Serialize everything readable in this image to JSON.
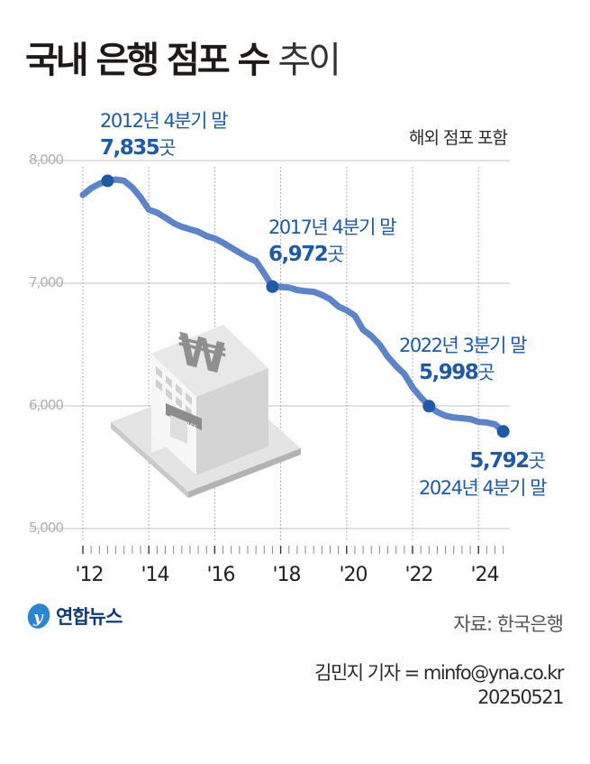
{
  "header": {
    "title_bold": "국내 은행 점포 수",
    "title_light": "추이",
    "note": "해외 점포 포함"
  },
  "colors": {
    "line": "#5b85c8",
    "marker": "#1e5aa8",
    "annotation": "#1e5aa8",
    "grid": "#cfcfcf",
    "axis_label": "#b0b0b0"
  },
  "annotations": [
    {
      "period": "2012년 4분기 말",
      "value": "7,835",
      "unit": "곳"
    },
    {
      "period": "2017년 4분기 말",
      "value": "6,972",
      "unit": "곳"
    },
    {
      "period": "2022년 3분기 말",
      "value": "5,998",
      "unit": "곳"
    },
    {
      "period": "2024년 4분기 말",
      "value": "5,792",
      "unit": "곳"
    }
  ],
  "footer": {
    "logo_text": "연합뉴스",
    "source": "자료: 한국은행",
    "credit": "김민지 기자 = minfo@yna.co.kr",
    "date": "20250521"
  },
  "chart_data": {
    "type": "line",
    "title": "국내 은행 점포 수 추이",
    "subtitle": "해외 점포 포함",
    "xlabel": "",
    "ylabel": "",
    "unit": "곳",
    "ylim": [
      5000,
      8000
    ],
    "yticks": [
      5000,
      6000,
      7000,
      8000
    ],
    "ytick_labels": [
      "5,000",
      "6,000",
      "7,000",
      "8,000"
    ],
    "xtick_labels": [
      "'12",
      "'14",
      "'16",
      "'18",
      "'20",
      "'22",
      "'24"
    ],
    "grid": true,
    "legend": null,
    "x": [
      "2012Q1",
      "2012Q2",
      "2012Q3",
      "2012Q4",
      "2013Q1",
      "2013Q2",
      "2013Q3",
      "2013Q4",
      "2014Q1",
      "2014Q2",
      "2014Q3",
      "2014Q4",
      "2015Q1",
      "2015Q2",
      "2015Q3",
      "2015Q4",
      "2016Q1",
      "2016Q2",
      "2016Q3",
      "2016Q4",
      "2017Q1",
      "2017Q2",
      "2017Q3",
      "2017Q4",
      "2018Q1",
      "2018Q2",
      "2018Q3",
      "2018Q4",
      "2019Q1",
      "2019Q2",
      "2019Q3",
      "2019Q4",
      "2020Q1",
      "2020Q2",
      "2020Q3",
      "2020Q4",
      "2021Q1",
      "2021Q2",
      "2021Q3",
      "2021Q4",
      "2022Q1",
      "2022Q2",
      "2022Q3",
      "2022Q4",
      "2023Q1",
      "2023Q2",
      "2023Q3",
      "2023Q4",
      "2024Q1",
      "2024Q2",
      "2024Q3",
      "2024Q4"
    ],
    "series": [
      {
        "name": "은행 점포 수",
        "values": [
          7720,
          7775,
          7810,
          7835,
          7845,
          7835,
          7780,
          7700,
          7600,
          7575,
          7535,
          7490,
          7460,
          7440,
          7420,
          7385,
          7365,
          7330,
          7290,
          7250,
          7210,
          7180,
          7080,
          6972,
          6970,
          6965,
          6945,
          6935,
          6930,
          6905,
          6870,
          6810,
          6780,
          6735,
          6620,
          6570,
          6500,
          6400,
          6325,
          6260,
          6150,
          6070,
          5998,
          5950,
          5920,
          5905,
          5900,
          5893,
          5870,
          5865,
          5850,
          5792
        ]
      }
    ],
    "highlighted_points": [
      {
        "x": "2012Q4",
        "value": 7835
      },
      {
        "x": "2017Q4",
        "value": 6972
      },
      {
        "x": "2022Q3",
        "value": 5998
      },
      {
        "x": "2024Q4",
        "value": 5792
      }
    ]
  }
}
